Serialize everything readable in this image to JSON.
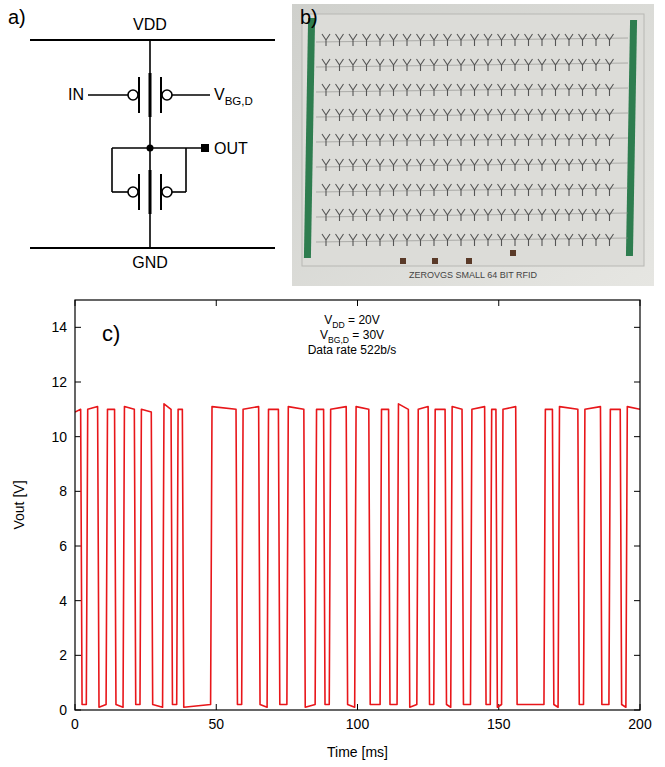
{
  "circuit": {
    "label": "a)",
    "vdd": "VDD",
    "gnd": "GND",
    "input": "IN",
    "bias": {
      "text": "V",
      "sub": "BG,D"
    },
    "output": "OUT"
  },
  "photo": {
    "label": "b)",
    "caption": "ZEROVGS SMALL 64 BIT RFID"
  },
  "chart_data": {
    "type": "line",
    "panel_label": "c)",
    "annotations": [
      {
        "text": "V",
        "sub": "DD",
        "tail": " = 20V"
      },
      {
        "text": "V",
        "sub": "BG,D",
        "tail": " = 30V"
      },
      {
        "text": "Data rate 522b/s"
      }
    ],
    "x_label": "Time [ms]",
    "y_label": "Vout [V]",
    "color": "#e8161a",
    "xlim": [
      0,
      200
    ],
    "xticks": [
      0,
      50,
      100,
      150,
      200
    ],
    "ylim": [
      0,
      15
    ],
    "yticks": [
      0,
      2,
      4,
      6,
      8,
      10,
      12,
      14
    ],
    "x": [
      0,
      2,
      2.5,
      4,
      4.5,
      8,
      8.5,
      11,
      11.5,
      14,
      14.5,
      17,
      17.5,
      21,
      21.5,
      23,
      23.5,
      27,
      27.5,
      31,
      31.5,
      34,
      34.5,
      36,
      36.5,
      38,
      38.5,
      48,
      48.5,
      57,
      57.5,
      59,
      59.5,
      65,
      65.5,
      68,
      68.5,
      72,
      72.5,
      75,
      75.5,
      81,
      81.5,
      85,
      85.5,
      88,
      88.5,
      90,
      90.5,
      96,
      96.5,
      99,
      99.5,
      104,
      104.5,
      108,
      108.5,
      111,
      111.5,
      114,
      114.5,
      118,
      118.5,
      121,
      121.5,
      125,
      125.5,
      127,
      127.5,
      131,
      131.5,
      133,
      133.5,
      137,
      137.5,
      140,
      140.5,
      145,
      145.5,
      147,
      147.5,
      149,
      149.5,
      151,
      151.5,
      156,
      156.5,
      166,
      166.5,
      169,
      169.5,
      171,
      171.5,
      178,
      178.5,
      180,
      180.5,
      186,
      186.5,
      189,
      189.5,
      193,
      193.5,
      195,
      195.5,
      200
    ],
    "values": [
      10.9,
      11.0,
      0.2,
      0.2,
      11.0,
      11.1,
      0.1,
      0.2,
      11.0,
      11.0,
      0.2,
      0.1,
      11.1,
      11.0,
      0.2,
      0.2,
      11.0,
      10.9,
      0.2,
      0.1,
      11.2,
      11.0,
      0.2,
      0.2,
      11.0,
      11.0,
      0.1,
      0.2,
      11.1,
      11.0,
      0.2,
      0.2,
      11.0,
      11.1,
      0.2,
      0.1,
      11.0,
      11.0,
      0.2,
      0.2,
      11.1,
      11.0,
      0.1,
      0.2,
      11.0,
      11.0,
      0.2,
      0.2,
      11.0,
      11.1,
      0.2,
      0.1,
      11.1,
      11.0,
      0.2,
      0.2,
      11.0,
      11.0,
      0.2,
      0.2,
      11.2,
      11.0,
      0.1,
      0.2,
      11.0,
      11.1,
      0.2,
      0.2,
      11.0,
      11.0,
      0.2,
      0.1,
      11.1,
      11.0,
      0.2,
      0.2,
      11.0,
      11.1,
      0.2,
      0.2,
      11.0,
      11.0,
      0.1,
      0.2,
      11.0,
      11.1,
      0.2,
      0.2,
      11.0,
      11.0,
      0.2,
      0.1,
      11.1,
      11.0,
      0.2,
      0.2,
      11.0,
      11.1,
      0.2,
      0.2,
      11.0,
      11.0,
      0.2,
      0.1,
      11.1,
      11.0
    ]
  }
}
